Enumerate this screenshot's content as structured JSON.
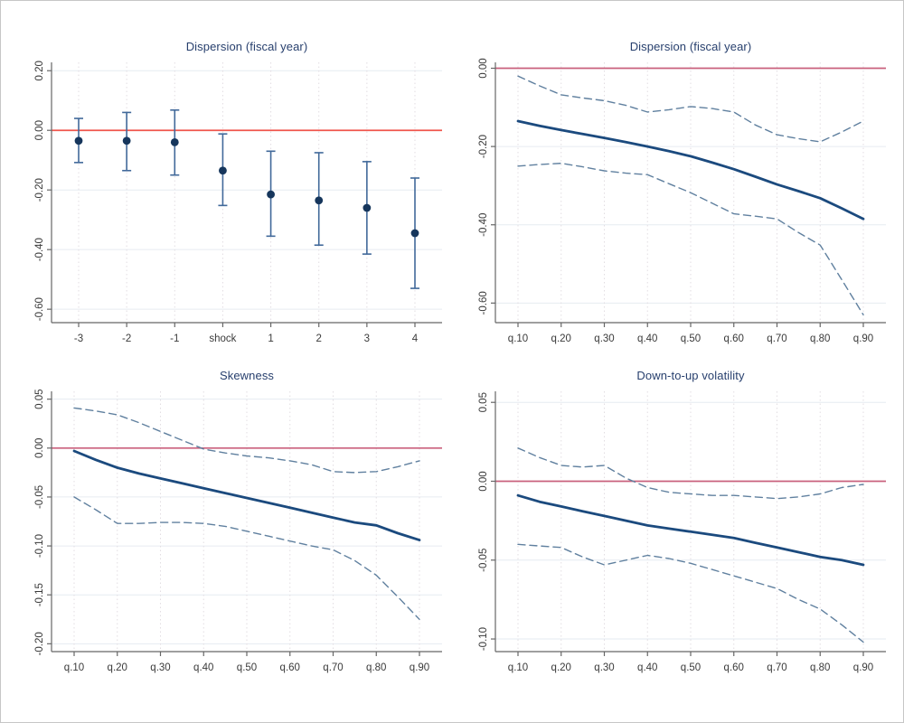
{
  "figure": {
    "background": "#ffffff",
    "border_color": "#c6c6c6",
    "axis_color": "#666666",
    "tick_text_color": "#3a3a3a",
    "hgrid_color": "#e6ebf1",
    "vgrid_color": "#e2dde2"
  },
  "chart_data": [
    {
      "id": "dispersion-event-study",
      "type": "scatter",
      "title": "Dispersion (fiscal year)",
      "categories": [
        "-3",
        "-2",
        "-1",
        "shock",
        "1",
        "2",
        "3",
        "4"
      ],
      "series": [
        {
          "name": "point estimate",
          "values": [
            -0.035,
            -0.035,
            -0.04,
            -0.135,
            -0.215,
            -0.235,
            -0.26,
            -0.345
          ]
        },
        {
          "name": "ci upper",
          "values": [
            0.04,
            0.06,
            0.068,
            -0.012,
            -0.07,
            -0.075,
            -0.105,
            -0.16
          ]
        },
        {
          "name": "ci lower",
          "values": [
            -0.108,
            -0.135,
            -0.15,
            -0.252,
            -0.355,
            -0.385,
            -0.415,
            -0.53
          ]
        }
      ],
      "yticks": [
        0.2,
        0.0,
        -0.2,
        -0.4,
        -0.6
      ],
      "ytick_labels": [
        "0.20",
        "0.00",
        "-0.20",
        "-0.40",
        "-0.60"
      ],
      "ylim": [
        0.228,
        -0.645
      ],
      "refline": 0,
      "grid": true,
      "legend": "none",
      "colors": {
        "marker": "#16365c",
        "errorbar": "#41699a",
        "refline": "#f0564d"
      }
    },
    {
      "id": "dispersion-quantile",
      "type": "line",
      "title": "Dispersion (fiscal year)",
      "x": [
        0.1,
        0.15,
        0.2,
        0.25,
        0.3,
        0.35,
        0.4,
        0.45,
        0.5,
        0.55,
        0.6,
        0.65,
        0.7,
        0.75,
        0.8,
        0.85,
        0.9
      ],
      "series": [
        {
          "name": "estimate",
          "style": "solid",
          "values": [
            -0.135,
            -0.147,
            -0.158,
            -0.168,
            -0.178,
            -0.189,
            -0.2,
            -0.212,
            -0.225,
            -0.241,
            -0.258,
            -0.277,
            -0.297,
            -0.314,
            -0.332,
            -0.358,
            -0.385
          ]
        },
        {
          "name": "ci upper",
          "style": "dashed",
          "values": [
            -0.02,
            -0.045,
            -0.068,
            -0.076,
            -0.083,
            -0.095,
            -0.112,
            -0.106,
            -0.098,
            -0.103,
            -0.112,
            -0.145,
            -0.17,
            -0.18,
            -0.188,
            -0.163,
            -0.135
          ]
        },
        {
          "name": "ci lower",
          "style": "dashed",
          "values": [
            -0.25,
            -0.246,
            -0.243,
            -0.252,
            -0.262,
            -0.268,
            -0.272,
            -0.295,
            -0.318,
            -0.345,
            -0.372,
            -0.378,
            -0.385,
            -0.42,
            -0.452,
            -0.54,
            -0.63
          ]
        }
      ],
      "xticks": [
        0.1,
        0.2,
        0.3,
        0.4,
        0.5,
        0.6,
        0.7,
        0.8,
        0.9
      ],
      "xtick_labels": [
        "q.10",
        "q.20",
        "q.30",
        "q.40",
        "q.50",
        "q.60",
        "q.70",
        "q.80",
        "q.90"
      ],
      "yticks": [
        0.0,
        -0.2,
        -0.4,
        -0.6
      ],
      "ytick_labels": [
        "0.00",
        "-0.20",
        "-0.40",
        "-0.60"
      ],
      "ylim": [
        0.015,
        -0.65
      ],
      "refline": 0,
      "grid": true,
      "legend": "none",
      "colors": {
        "line": "#1b4a7e",
        "band": "#60809f",
        "refline": "#c9607c"
      }
    },
    {
      "id": "skewness-quantile",
      "type": "line",
      "title": "Skewness",
      "x": [
        0.1,
        0.15,
        0.2,
        0.25,
        0.3,
        0.35,
        0.4,
        0.45,
        0.5,
        0.55,
        0.6,
        0.65,
        0.7,
        0.75,
        0.8,
        0.85,
        0.9
      ],
      "series": [
        {
          "name": "estimate",
          "style": "solid",
          "values": [
            -0.003,
            -0.012,
            -0.02,
            -0.026,
            -0.031,
            -0.036,
            -0.041,
            -0.046,
            -0.051,
            -0.056,
            -0.061,
            -0.066,
            -0.071,
            -0.076,
            -0.079,
            -0.087,
            -0.094
          ]
        },
        {
          "name": "ci upper",
          "style": "dashed",
          "values": [
            0.041,
            0.038,
            0.034,
            0.026,
            0.017,
            0.008,
            -0.001,
            -0.005,
            -0.008,
            -0.01,
            -0.013,
            -0.017,
            -0.024,
            -0.025,
            -0.024,
            -0.019,
            -0.013
          ]
        },
        {
          "name": "ci lower",
          "style": "dashed",
          "values": [
            -0.05,
            -0.063,
            -0.077,
            -0.077,
            -0.076,
            -0.076,
            -0.077,
            -0.08,
            -0.085,
            -0.09,
            -0.095,
            -0.1,
            -0.104,
            -0.115,
            -0.13,
            -0.152,
            -0.175
          ]
        }
      ],
      "xticks": [
        0.1,
        0.2,
        0.3,
        0.4,
        0.5,
        0.6,
        0.7,
        0.8,
        0.9
      ],
      "xtick_labels": [
        "q.10",
        "q.20",
        "q.30",
        "q.40",
        "q.50",
        "q.60",
        "q.70",
        "q.80",
        "q.90"
      ],
      "yticks": [
        0.05,
        0.0,
        -0.05,
        -0.1,
        -0.15,
        -0.2
      ],
      "ytick_labels": [
        "0.05",
        "0.00",
        "-0.05",
        "-0.10",
        "-0.15",
        "-0.20"
      ],
      "ylim": [
        0.058,
        -0.208
      ],
      "refline": 0,
      "grid": true,
      "legend": "none",
      "colors": {
        "line": "#1b4a7e",
        "band": "#60809f",
        "refline": "#c9607c"
      }
    },
    {
      "id": "down-to-up-volatility-quantile",
      "type": "line",
      "title": "Down-to-up volatility",
      "x": [
        0.1,
        0.15,
        0.2,
        0.25,
        0.3,
        0.35,
        0.4,
        0.45,
        0.5,
        0.55,
        0.6,
        0.65,
        0.7,
        0.75,
        0.8,
        0.85,
        0.9
      ],
      "series": [
        {
          "name": "estimate",
          "style": "solid",
          "values": [
            -0.009,
            -0.013,
            -0.016,
            -0.019,
            -0.022,
            -0.025,
            -0.028,
            -0.03,
            -0.032,
            -0.034,
            -0.036,
            -0.039,
            -0.042,
            -0.045,
            -0.048,
            -0.05,
            -0.053
          ]
        },
        {
          "name": "ci upper",
          "style": "dashed",
          "values": [
            0.021,
            0.015,
            0.01,
            0.009,
            0.01,
            0.002,
            -0.004,
            -0.007,
            -0.008,
            -0.009,
            -0.009,
            -0.01,
            -0.011,
            -0.01,
            -0.008,
            -0.004,
            -0.002
          ]
        },
        {
          "name": "ci lower",
          "style": "dashed",
          "values": [
            -0.04,
            -0.041,
            -0.042,
            -0.048,
            -0.053,
            -0.05,
            -0.047,
            -0.049,
            -0.052,
            -0.056,
            -0.06,
            -0.064,
            -0.068,
            -0.075,
            -0.081,
            -0.091,
            -0.102
          ]
        }
      ],
      "xticks": [
        0.1,
        0.2,
        0.3,
        0.4,
        0.5,
        0.6,
        0.7,
        0.8,
        0.9
      ],
      "xtick_labels": [
        "q.10",
        "q.20",
        "q.30",
        "q.40",
        "q.50",
        "q.60",
        "q.70",
        "q.80",
        "q.90"
      ],
      "yticks": [
        0.05,
        0.0,
        -0.05,
        -0.1
      ],
      "ytick_labels": [
        "0.05",
        "0.00",
        "-0.05",
        "-0.10"
      ],
      "ylim": [
        0.057,
        -0.108
      ],
      "refline": 0,
      "grid": true,
      "legend": "none",
      "colors": {
        "line": "#1b4a7e",
        "band": "#60809f",
        "refline": "#c9607c"
      }
    }
  ]
}
